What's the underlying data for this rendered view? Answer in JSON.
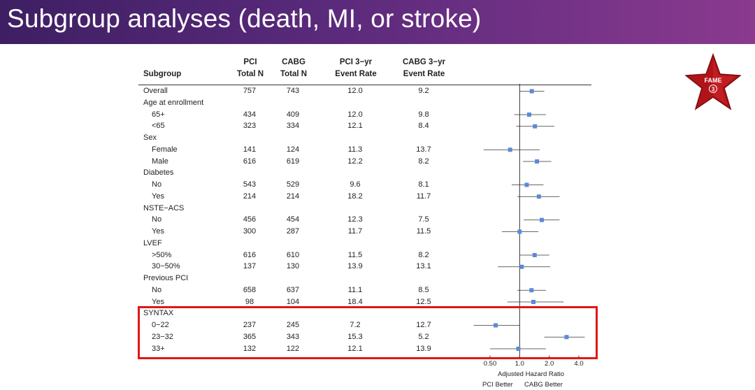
{
  "slide": {
    "title": "Subgroup analyses (death, MI, or stroke)"
  },
  "table": {
    "headers": {
      "subgroup": "Subgroup",
      "pci_n_1": "PCI",
      "pci_n_2": "Total N",
      "cabg_n_1": "CABG",
      "cabg_n_2": "Total N",
      "pci_rate_1": "PCI 3−yr",
      "pci_rate_2": "Event Rate",
      "cabg_rate_1": "CABG 3−yr",
      "cabg_rate_2": "Event Rate"
    },
    "rows": [
      {
        "label": "Overall",
        "indent": false,
        "pci_n": "757",
        "cabg_n": "743",
        "pci_rate": "12.0",
        "cabg_rate": "9.2",
        "hr": 1.33,
        "lo": 1.0,
        "hi": 1.78
      },
      {
        "label": "Age at enrollment",
        "indent": false,
        "pci_n": "",
        "cabg_n": "",
        "pci_rate": "",
        "cabg_rate": "",
        "hr": null,
        "lo": null,
        "hi": null
      },
      {
        "label": "65+",
        "indent": true,
        "pci_n": "434",
        "cabg_n": "409",
        "pci_rate": "12.0",
        "cabg_rate": "9.8",
        "hr": 1.25,
        "lo": 0.88,
        "hi": 1.85
      },
      {
        "label": "<65",
        "indent": true,
        "pci_n": "323",
        "cabg_n": "334",
        "pci_rate": "12.1",
        "cabg_rate": "8.4",
        "hr": 1.43,
        "lo": 0.92,
        "hi": 2.25
      },
      {
        "label": "Sex",
        "indent": false,
        "pci_n": "",
        "cabg_n": "",
        "pci_rate": "",
        "cabg_rate": "",
        "hr": null,
        "lo": null,
        "hi": null
      },
      {
        "label": "Female",
        "indent": true,
        "pci_n": "141",
        "cabg_n": "124",
        "pci_rate": "11.3",
        "cabg_rate": "13.7",
        "hr": 0.8,
        "lo": 0.43,
        "hi": 1.6
      },
      {
        "label": "Male",
        "indent": true,
        "pci_n": "616",
        "cabg_n": "619",
        "pci_rate": "12.2",
        "cabg_rate": "8.2",
        "hr": 1.5,
        "lo": 1.08,
        "hi": 2.1
      },
      {
        "label": "Diabetes",
        "indent": false,
        "pci_n": "",
        "cabg_n": "",
        "pci_rate": "",
        "cabg_rate": "",
        "hr": null,
        "lo": null,
        "hi": null
      },
      {
        "label": "No",
        "indent": true,
        "pci_n": "543",
        "cabg_n": "529",
        "pci_rate": "9.6",
        "cabg_rate": "8.1",
        "hr": 1.18,
        "lo": 0.83,
        "hi": 1.75
      },
      {
        "label": "Yes",
        "indent": true,
        "pci_n": "214",
        "cabg_n": "214",
        "pci_rate": "18.2",
        "cabg_rate": "11.7",
        "hr": 1.57,
        "lo": 0.95,
        "hi": 2.55
      },
      {
        "label": "NSTE−ACS",
        "indent": false,
        "pci_n": "",
        "cabg_n": "",
        "pci_rate": "",
        "cabg_rate": "",
        "hr": null,
        "lo": null,
        "hi": null
      },
      {
        "label": "No",
        "indent": true,
        "pci_n": "456",
        "cabg_n": "454",
        "pci_rate": "12.3",
        "cabg_rate": "7.5",
        "hr": 1.68,
        "lo": 1.1,
        "hi": 2.55
      },
      {
        "label": "Yes",
        "indent": true,
        "pci_n": "300",
        "cabg_n": "287",
        "pci_rate": "11.7",
        "cabg_rate": "11.5",
        "hr": 1.0,
        "lo": 0.66,
        "hi": 1.55
      },
      {
        "label": "LVEF",
        "indent": false,
        "pci_n": "",
        "cabg_n": "",
        "pci_rate": "",
        "cabg_rate": "",
        "hr": null,
        "lo": null,
        "hi": null
      },
      {
        "label": ">50%",
        "indent": true,
        "pci_n": "616",
        "cabg_n": "610",
        "pci_rate": "11.5",
        "cabg_rate": "8.2",
        "hr": 1.42,
        "lo": 1.0,
        "hi": 2.0
      },
      {
        "label": "30−50%",
        "indent": true,
        "pci_n": "137",
        "cabg_n": "130",
        "pci_rate": "13.9",
        "cabg_rate": "13.1",
        "hr": 1.05,
        "lo": 0.6,
        "hi": 2.05
      },
      {
        "label": "Previous PCI",
        "indent": false,
        "pci_n": "",
        "cabg_n": "",
        "pci_rate": "",
        "cabg_rate": "",
        "hr": null,
        "lo": null,
        "hi": null
      },
      {
        "label": "No",
        "indent": true,
        "pci_n": "658",
        "cabg_n": "637",
        "pci_rate": "11.1",
        "cabg_rate": "8.5",
        "hr": 1.32,
        "lo": 0.95,
        "hi": 1.85
      },
      {
        "label": "Yes",
        "indent": true,
        "pci_n": "98",
        "cabg_n": "104",
        "pci_rate": "18.4",
        "cabg_rate": "12.5",
        "hr": 1.38,
        "lo": 0.75,
        "hi": 2.8
      },
      {
        "label": "SYNTAX",
        "indent": false,
        "pci_n": "",
        "cabg_n": "",
        "pci_rate": "",
        "cabg_rate": "",
        "hr": null,
        "lo": null,
        "hi": null
      },
      {
        "label": "0−22",
        "indent": true,
        "pci_n": "237",
        "cabg_n": "245",
        "pci_rate": "7.2",
        "cabg_rate": "12.7",
        "hr": 0.57,
        "lo": 0.34,
        "hi": 1.0
      },
      {
        "label": "23−32",
        "indent": true,
        "pci_n": "365",
        "cabg_n": "343",
        "pci_rate": "15.3",
        "cabg_rate": "5.2",
        "hr": 3.0,
        "lo": 1.78,
        "hi": 4.9
      },
      {
        "label": "33+",
        "indent": true,
        "pci_n": "132",
        "cabg_n": "122",
        "pci_rate": "12.1",
        "cabg_rate": "13.9",
        "hr": 0.97,
        "lo": 0.5,
        "hi": 1.85
      }
    ]
  },
  "forest_plot": {
    "x_ticks": [
      "0.50",
      "1.0",
      "2.0",
      "4.0"
    ],
    "x_tick_values": [
      0.5,
      1.0,
      2.0,
      4.0
    ],
    "x_range": [
      0.5,
      4.0
    ],
    "x_scale": "log",
    "xlabel": "Adjusted Hazard Ratio",
    "left_caption": "PCI Better",
    "right_caption": "CABG Better",
    "marker_color": "#5b8ad8"
  },
  "badge": {
    "text": "FAME",
    "number": "3",
    "color": "#b01418"
  },
  "highlight": {
    "color": "#e01717"
  }
}
